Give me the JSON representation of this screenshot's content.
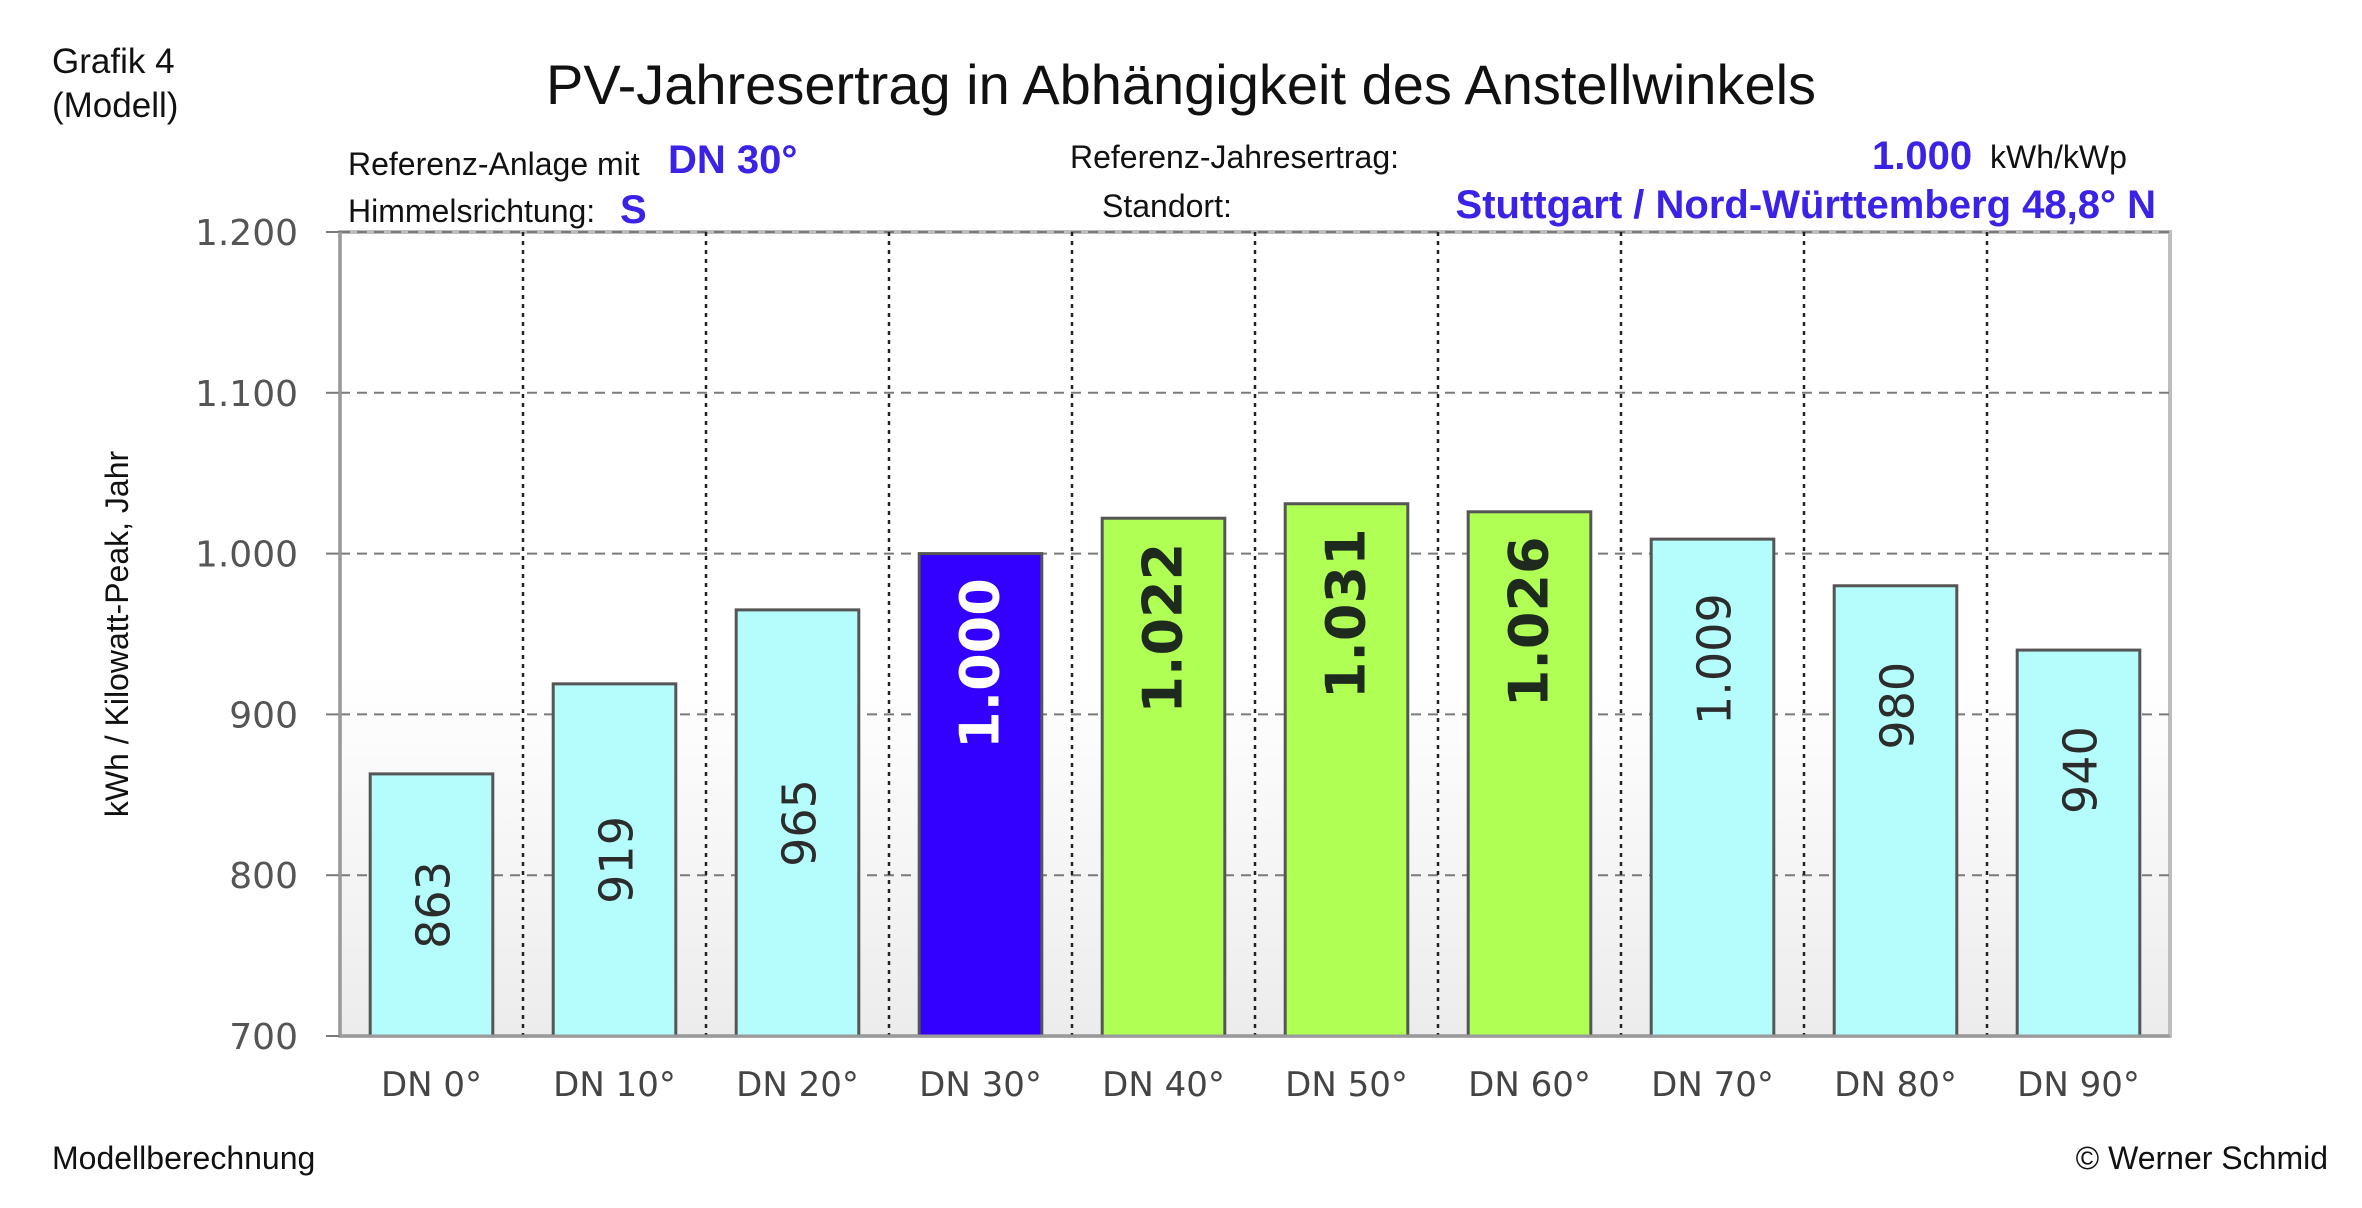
{
  "corner_label": {
    "line1": "Grafik 4",
    "line2": "(Modell)"
  },
  "title": "PV-Jahresertrag in Abhängigkeit des Anstellwinkels",
  "info": {
    "ref_label": "Referenz-Anlage mit",
    "ref_value": "DN 30°",
    "dir_label": "Himmelsrichtung:",
    "dir_value": "S",
    "yield_label": "Referenz-Jahresertrag:",
    "yield_value": "1.000",
    "yield_unit": "kWh/kWp",
    "loc_label": "Standort:",
    "loc_value": "Stuttgart / Nord-Württemberg 48,8° N"
  },
  "footer": {
    "left": "Modellberechnung",
    "right": "© Werner Schmid"
  },
  "colors": {
    "cyan": "#b5fcfc",
    "reference": "#3300ff",
    "green": "#b0ff55",
    "accent_text": "#3a22e6",
    "bar_border": "#555555"
  },
  "chart_data": {
    "type": "bar",
    "categories": [
      "DN 0°",
      "DN 10°",
      "DN 20°",
      "DN 30°",
      "DN 40°",
      "DN 50°",
      "DN 60°",
      "DN 70°",
      "DN 80°",
      "DN 90°"
    ],
    "values": [
      863,
      919,
      965,
      1000,
      1022,
      1031,
      1026,
      1009,
      980,
      940
    ],
    "value_labels": [
      "863",
      "919",
      "965",
      "1.000",
      "1.022",
      "1.031",
      "1.026",
      "1.009",
      "980",
      "940"
    ],
    "bar_color_keys": [
      "cyan",
      "cyan",
      "cyan",
      "reference",
      "green",
      "green",
      "green",
      "cyan",
      "cyan",
      "cyan"
    ],
    "ylabel": "kWh / Kilowatt-Peak, Jahr",
    "ylim": [
      700,
      1200
    ],
    "yticks": [
      700,
      800,
      900,
      1000,
      1100,
      1200
    ],
    "ytick_labels": [
      "700",
      "800",
      "900",
      "1.000",
      "1.100",
      "1.200"
    ],
    "grid": true
  }
}
